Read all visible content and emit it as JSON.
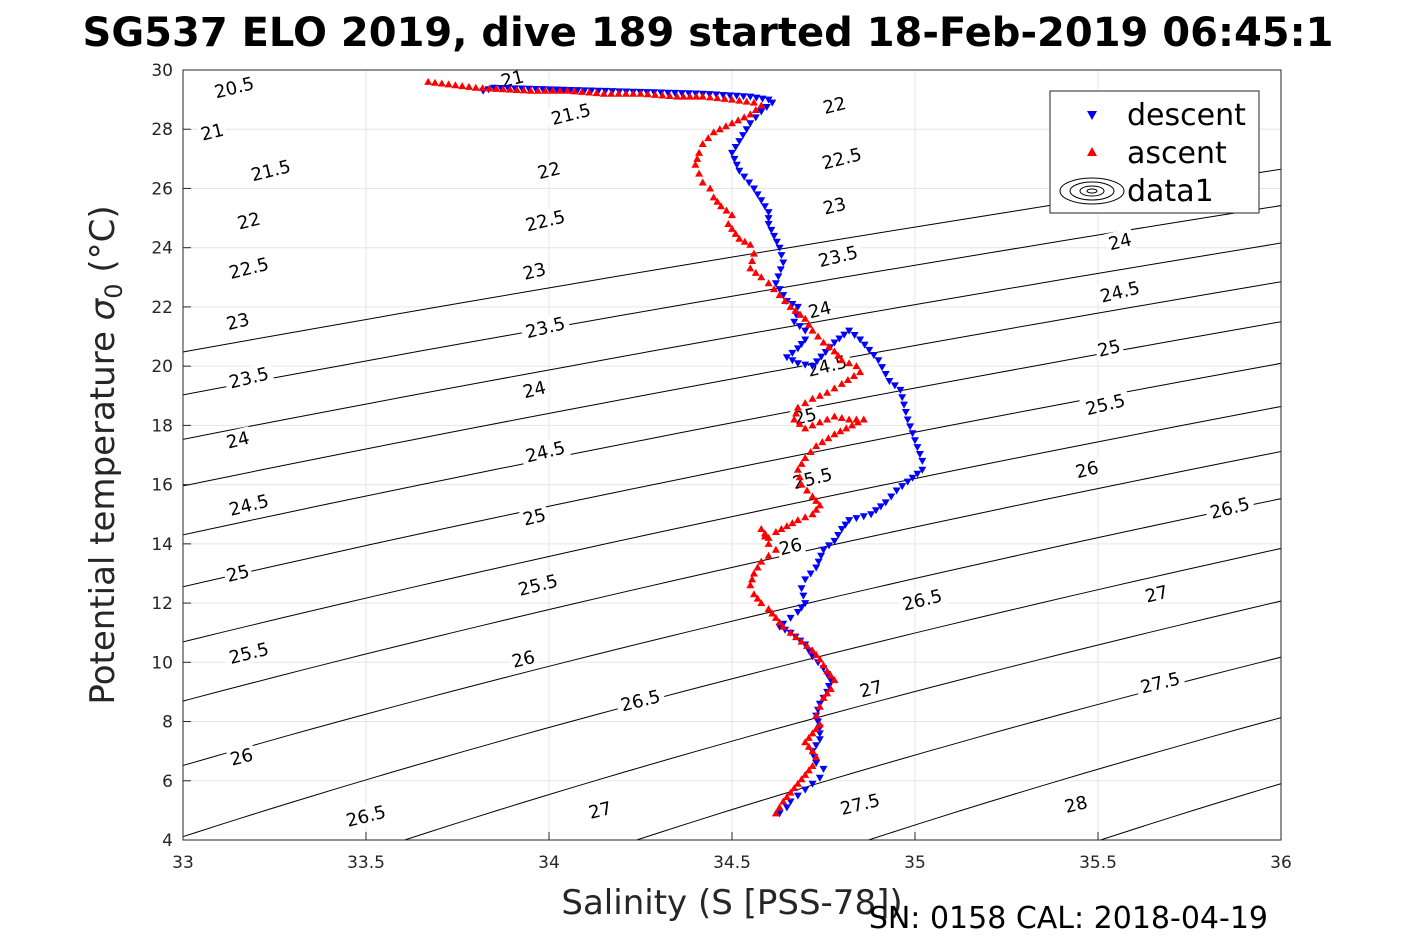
{
  "chart_data": {
    "type": "scatter",
    "title": "SG537 ELO 2019, dive 189 started 18-Feb-2019 06:45:1",
    "xlabel": "Salinity (S [PSS-78])",
    "ylabel_prefix": "Potential temperature ",
    "ylabel_sigma": "σ",
    "ylabel_sub": "0",
    "ylabel_suffix": " (°C)",
    "footer": "SN: 0158  CAL: 2018-04-19",
    "xlim": [
      33,
      36
    ],
    "ylim": [
      4,
      30
    ],
    "grid": true,
    "xticks": [
      33,
      33.5,
      34,
      34.5,
      35,
      35.5,
      36
    ],
    "xtick_labels": [
      "33",
      "33.5",
      "34",
      "34.5",
      "35",
      "35.5",
      "36"
    ],
    "yticks": [
      4,
      6,
      8,
      10,
      12,
      14,
      16,
      18,
      20,
      22,
      24,
      26,
      28,
      30
    ],
    "ytick_labels": [
      "4",
      "6",
      "8",
      "10",
      "12",
      "14",
      "16",
      "18",
      "20",
      "22",
      "24",
      "26",
      "28",
      "30"
    ],
    "legend": {
      "placement": "top-right",
      "entries": [
        "descent",
        "ascent",
        "data1"
      ]
    },
    "colors": {
      "descent": "#0000ff",
      "ascent": "#ff0000",
      "contour": "#000000"
    },
    "contour_levels": [
      20.5,
      21,
      21.5,
      22,
      22.5,
      23,
      23.5,
      24,
      24.5,
      25,
      25.5,
      26,
      26.5,
      27,
      27.5,
      28
    ],
    "contour_labels": [
      {
        "text": "20.5",
        "x": 33.14,
        "y": 29.4
      },
      {
        "text": "21",
        "x": 33.08,
        "y": 27.9
      },
      {
        "text": "21.5",
        "x": 33.24,
        "y": 26.6
      },
      {
        "text": "22",
        "x": 33.18,
        "y": 24.9
      },
      {
        "text": "22.5",
        "x": 33.18,
        "y": 23.3
      },
      {
        "text": "23",
        "x": 33.15,
        "y": 21.5
      },
      {
        "text": "23.5",
        "x": 33.18,
        "y": 19.6
      },
      {
        "text": "24",
        "x": 33.15,
        "y": 17.5
      },
      {
        "text": "24.5",
        "x": 33.18,
        "y": 15.3
      },
      {
        "text": "25",
        "x": 33.15,
        "y": 13.0
      },
      {
        "text": "25.5",
        "x": 33.18,
        "y": 10.3
      },
      {
        "text": "26",
        "x": 33.16,
        "y": 6.8
      },
      {
        "text": "26.5",
        "x": 33.5,
        "y": 4.8
      },
      {
        "text": "21",
        "x": 33.9,
        "y": 29.7
      },
      {
        "text": "21.5",
        "x": 34.06,
        "y": 28.5
      },
      {
        "text": "22",
        "x": 34.0,
        "y": 26.6
      },
      {
        "text": "22.5",
        "x": 33.99,
        "y": 24.9
      },
      {
        "text": "23",
        "x": 33.96,
        "y": 23.2
      },
      {
        "text": "23.5",
        "x": 33.99,
        "y": 21.3
      },
      {
        "text": "24",
        "x": 33.96,
        "y": 19.2
      },
      {
        "text": "24.5",
        "x": 33.99,
        "y": 17.1
      },
      {
        "text": "25",
        "x": 33.96,
        "y": 14.9
      },
      {
        "text": "25.5",
        "x": 33.97,
        "y": 12.6
      },
      {
        "text": "26",
        "x": 33.93,
        "y": 10.1
      },
      {
        "text": "26.5",
        "x": 34.25,
        "y": 8.7
      },
      {
        "text": "27",
        "x": 34.14,
        "y": 5.0
      },
      {
        "text": "22",
        "x": 34.78,
        "y": 28.8
      },
      {
        "text": "22.5",
        "x": 34.8,
        "y": 27.0
      },
      {
        "text": "23",
        "x": 34.78,
        "y": 25.4
      },
      {
        "text": "23.5",
        "x": 34.79,
        "y": 23.7
      },
      {
        "text": "24",
        "x": 34.74,
        "y": 21.9
      },
      {
        "text": "24.5",
        "x": 34.76,
        "y": 20.0
      },
      {
        "text": "25",
        "x": 34.7,
        "y": 18.3
      },
      {
        "text": "25.5",
        "x": 34.72,
        "y": 16.2
      },
      {
        "text": "26",
        "x": 34.66,
        "y": 13.9
      },
      {
        "text": "26.5",
        "x": 35.02,
        "y": 12.1
      },
      {
        "text": "27",
        "x": 34.88,
        "y": 9.1
      },
      {
        "text": "27.5",
        "x": 34.85,
        "y": 5.2
      },
      {
        "text": "24",
        "x": 35.56,
        "y": 24.2
      },
      {
        "text": "24.5",
        "x": 35.56,
        "y": 22.5
      },
      {
        "text": "25",
        "x": 35.53,
        "y": 20.6
      },
      {
        "text": "25.5",
        "x": 35.52,
        "y": 18.7
      },
      {
        "text": "26",
        "x": 35.47,
        "y": 16.5
      },
      {
        "text": "26.5",
        "x": 35.86,
        "y": 15.2
      },
      {
        "text": "27",
        "x": 35.66,
        "y": 12.3
      },
      {
        "text": "27.5",
        "x": 35.67,
        "y": 9.3
      },
      {
        "text": "28",
        "x": 35.44,
        "y": 5.2
      }
    ],
    "series": [
      {
        "name": "descent",
        "marker": "down-triangle",
        "x": [
          33.82,
          33.85,
          34.42,
          34.55,
          34.6,
          34.61,
          34.58,
          34.55,
          34.52,
          34.5,
          34.52,
          34.56,
          34.58,
          34.6,
          34.6,
          34.63,
          34.64,
          34.62,
          34.65,
          34.68,
          34.67,
          34.7,
          34.7,
          34.68,
          34.65,
          34.68,
          34.72,
          34.78,
          34.82,
          34.85,
          34.9,
          34.93,
          34.96,
          34.97,
          34.98,
          35.0,
          35.02,
          35.02,
          34.98,
          34.95,
          34.92,
          34.88,
          34.82,
          34.8,
          34.78,
          34.75,
          34.73,
          34.7,
          34.69,
          34.7,
          34.68,
          34.66,
          34.64,
          34.63,
          34.66,
          34.7,
          34.72,
          34.75,
          34.77,
          34.76,
          34.74,
          34.73,
          34.74,
          34.74,
          34.72,
          34.73,
          34.75,
          34.74,
          34.72,
          34.7,
          34.68,
          34.66,
          34.65,
          34.63
        ],
        "y": [
          29.3,
          29.4,
          29.2,
          29.1,
          29.0,
          28.9,
          28.6,
          28.2,
          27.6,
          27.2,
          26.6,
          26.0,
          25.6,
          25.2,
          24.8,
          24.0,
          23.5,
          22.8,
          22.2,
          22.0,
          21.5,
          21.2,
          20.9,
          20.6,
          20.3,
          20.1,
          20.0,
          20.8,
          21.2,
          20.9,
          20.2,
          19.5,
          19.2,
          18.7,
          18.2,
          17.5,
          16.8,
          16.5,
          16.1,
          15.8,
          15.4,
          15.0,
          14.8,
          14.5,
          14.1,
          13.8,
          13.2,
          12.8,
          12.5,
          12.0,
          11.7,
          11.5,
          11.3,
          11.2,
          11.0,
          10.6,
          10.2,
          9.8,
          9.4,
          9.0,
          8.6,
          8.2,
          7.8,
          7.4,
          7.0,
          6.6,
          6.4,
          6.1,
          5.9,
          5.7,
          5.5,
          5.3,
          5.1,
          4.9
        ]
      },
      {
        "name": "ascent",
        "marker": "up-triangle",
        "x": [
          33.67,
          33.8,
          33.95,
          34.05,
          34.15,
          34.25,
          34.35,
          34.42,
          34.5,
          34.56,
          34.58,
          34.55,
          34.5,
          34.45,
          34.42,
          34.41,
          34.4,
          34.41,
          34.42,
          34.44,
          34.45,
          34.47,
          34.5,
          34.49,
          34.52,
          34.55,
          34.56,
          34.55,
          34.58,
          34.6,
          34.63,
          34.66,
          34.7,
          34.72,
          34.75,
          34.78,
          34.8,
          34.84,
          34.85,
          34.8,
          34.76,
          34.72,
          34.68,
          34.67,
          34.7,
          34.74,
          34.78,
          34.82,
          34.86,
          34.78,
          34.73,
          34.7,
          34.68,
          34.69,
          34.72,
          34.74,
          34.72,
          34.68,
          34.65,
          34.62,
          34.6,
          34.58,
          34.6,
          34.62,
          34.6,
          34.58,
          34.57,
          34.56,
          34.55,
          34.56,
          34.58,
          34.6,
          34.62,
          34.64,
          34.66,
          34.69,
          34.72,
          34.74,
          34.76,
          34.78,
          34.77,
          34.75,
          34.74,
          34.73,
          34.74,
          34.72,
          34.7,
          34.72,
          34.73,
          34.72,
          34.7,
          34.68,
          34.66,
          34.64,
          34.63,
          34.62
        ],
        "y": [
          29.6,
          29.4,
          29.3,
          29.3,
          29.2,
          29.2,
          29.1,
          29.1,
          29.0,
          28.9,
          28.8,
          28.5,
          28.2,
          27.9,
          27.5,
          27.2,
          26.8,
          26.5,
          26.2,
          26.0,
          25.7,
          25.4,
          25.1,
          24.8,
          24.3,
          24.1,
          23.8,
          23.3,
          23.0,
          22.8,
          22.4,
          22.0,
          21.6,
          21.2,
          20.8,
          20.5,
          20.2,
          20.0,
          19.8,
          19.4,
          19.1,
          18.9,
          18.6,
          18.2,
          17.9,
          18.1,
          18.3,
          18.2,
          18.2,
          17.7,
          17.3,
          16.9,
          16.5,
          16.0,
          15.6,
          15.3,
          15.0,
          14.8,
          14.6,
          14.4,
          14.2,
          14.5,
          14.0,
          13.8,
          13.6,
          13.4,
          13.2,
          13.0,
          12.6,
          12.3,
          12.0,
          11.8,
          11.5,
          11.2,
          11.0,
          10.7,
          10.4,
          10.1,
          9.7,
          9.4,
          9.1,
          8.8,
          8.5,
          8.2,
          7.9,
          7.6,
          7.3,
          7.0,
          6.8,
          6.5,
          6.2,
          5.9,
          5.6,
          5.3,
          5.1,
          4.9
        ]
      }
    ]
  }
}
